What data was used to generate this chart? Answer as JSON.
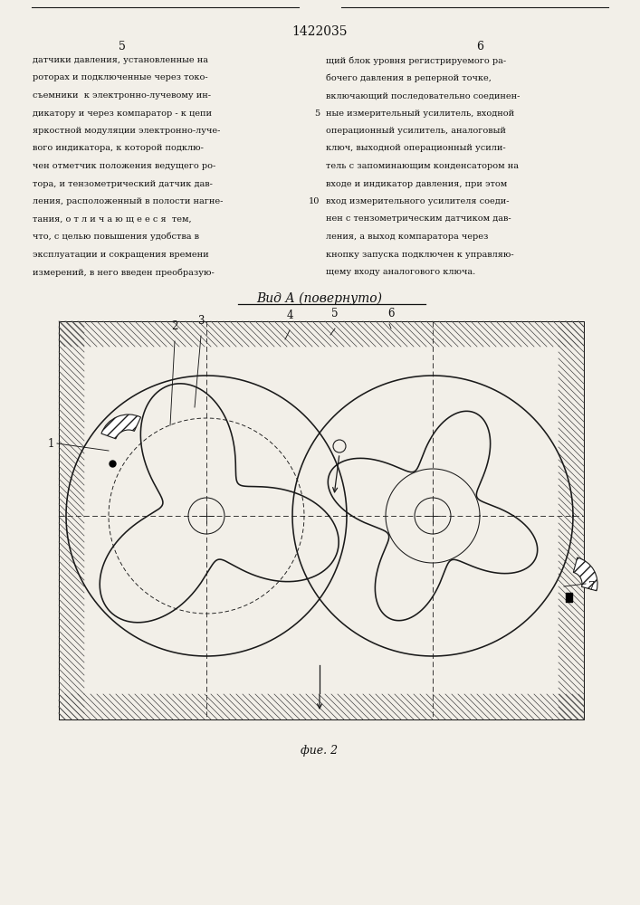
{
  "title_patent": "1422035",
  "page_left": "5",
  "page_right": "6",
  "view_label": "Вид А (повернуто)",
  "fig_label": "фие. 2",
  "text_left_lines": [
    "датчики давления, установленные на",
    "роторах и подключенные через токо-",
    "съемники  к электронно-лучевому ин-",
    "дикатору и через компаратор - к цепи",
    "яркостной модуляции электронно-луче-",
    "вого индикатора, к которой подклю-",
    "чен отметчик положения ведущего ро-",
    "тора, и тензометрический датчик дав-",
    "ления, расположенный в полости нагне-",
    "тания, о т л и ч а ю щ е е с я  тем,",
    "что, с целью повышения удобства в",
    "эксплуатации и сокращения времени",
    "измерений, в него введен преобразую-"
  ],
  "text_right_lines": [
    "щий блок уровня регистрируемого ра-",
    "бочего давления в реперной точке,",
    "включающий последовательно соединен-",
    "ные измерительный усилитель, входной",
    "операционный усилитель, аналоговый",
    "ключ, выходной операционный усили-",
    "тель с запоминающим конденсатором на",
    "входе и индикатор давления, при этом",
    "вход измерительного усилителя соеди-",
    "нен с тензометрическим датчиком дав-",
    "ления, а выход компаратора через",
    "кнопку запуска подключен к управляю-",
    "щему входу аналогового ключа."
  ],
  "bg_color": "#f2efe8",
  "line_color": "#1a1a1a",
  "text_color": "#111111",
  "hatch_color": "#444444"
}
